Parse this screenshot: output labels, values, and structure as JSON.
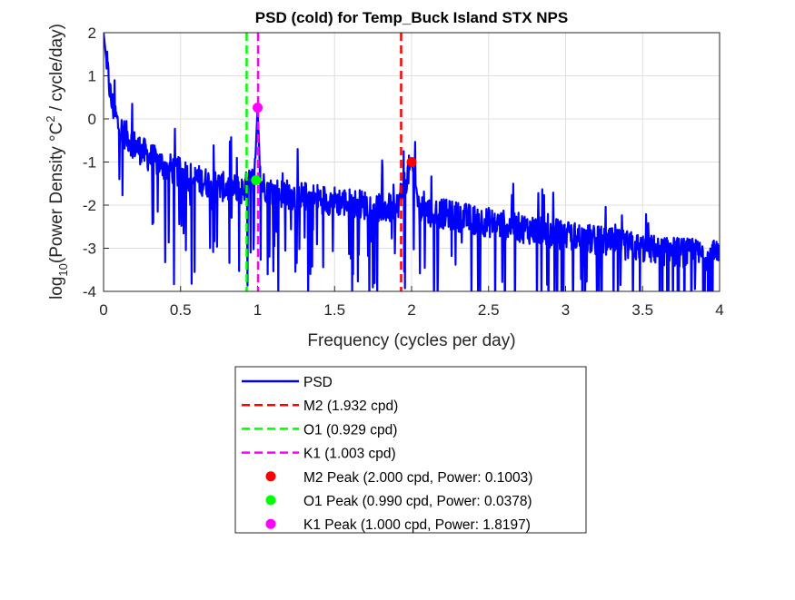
{
  "chart_data": {
    "type": "line",
    "title": "PSD (cold) for Temp_Buck Island STX NPS",
    "xlabel": "Frequency (cycles per day)",
    "ylabel_parts": {
      "prefix": "log",
      "subscript": "10",
      "mid": "(Power Density °C",
      "superscript": "2",
      "suffix": " / cycle/day)"
    },
    "xlim": [
      0,
      4
    ],
    "ylim": [
      -4,
      2
    ],
    "xticks": [
      "0",
      "0.5",
      "1",
      "1.5",
      "2",
      "2.5",
      "3",
      "3.5",
      "4"
    ],
    "yticks": [
      "-4",
      "-3",
      "-2",
      "-1",
      "0",
      "1",
      "2"
    ],
    "grid": true,
    "legend_position": "below-plot",
    "series": [
      {
        "name": "PSD",
        "color": "#0000ff",
        "style": "solid",
        "envelope_points": [
          [
            0.0,
            2.0
          ],
          [
            0.02,
            1.3
          ],
          [
            0.05,
            0.4
          ],
          [
            0.1,
            -0.2
          ],
          [
            0.2,
            -0.6
          ],
          [
            0.3,
            -0.9
          ],
          [
            0.4,
            -1.1
          ],
          [
            0.5,
            -1.25
          ],
          [
            0.6,
            -1.4
          ],
          [
            0.7,
            -1.5
          ],
          [
            0.8,
            -1.6
          ],
          [
            0.9,
            -1.65
          ],
          [
            0.98,
            -1.4
          ],
          [
            1.0,
            0.25
          ],
          [
            1.02,
            -1.5
          ],
          [
            1.1,
            -1.7
          ],
          [
            1.3,
            -1.8
          ],
          [
            1.5,
            -1.9
          ],
          [
            1.7,
            -2.0
          ],
          [
            1.9,
            -2.1
          ],
          [
            2.0,
            -1.0
          ],
          [
            2.05,
            -2.1
          ],
          [
            2.2,
            -2.2
          ],
          [
            2.5,
            -2.4
          ],
          [
            3.0,
            -2.7
          ],
          [
            3.5,
            -3.0
          ],
          [
            4.0,
            -3.2
          ]
        ]
      },
      {
        "name": "M2 (1.932 cpd)",
        "type": "vline",
        "x": 1.932,
        "color": "#ff0000",
        "style": "dashed"
      },
      {
        "name": "O1 (0.929 cpd)",
        "type": "vline",
        "x": 0.929,
        "color": "#00ff00",
        "style": "dashed"
      },
      {
        "name": "K1 (1.003 cpd)",
        "type": "vline",
        "x": 1.003,
        "color": "#ff00ff",
        "style": "dashed"
      },
      {
        "name": "M2 Peak (2.000 cpd, Power: 0.1003)",
        "type": "point",
        "x": 2.0,
        "y": -1.0,
        "color": "#ff0000"
      },
      {
        "name": "O1 Peak (0.990 cpd, Power: 0.0378)",
        "type": "point",
        "x": 0.99,
        "y": -1.42,
        "color": "#00ff00"
      },
      {
        "name": "K1 Peak (1.000 cpd, Power: 1.8197)",
        "type": "point",
        "x": 1.0,
        "y": 0.26,
        "color": "#ff00ff"
      }
    ]
  }
}
